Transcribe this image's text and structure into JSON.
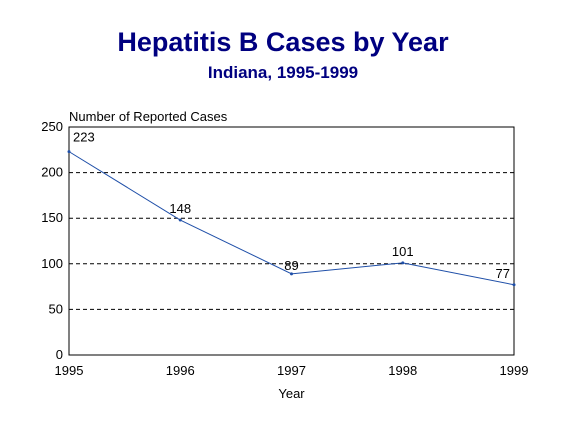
{
  "chart_data": {
    "type": "line",
    "title": "Hepatitis B Cases by Year",
    "subtitle": "Indiana, 1995-1999",
    "ylabel": "Number of Reported Cases",
    "xlabel": "Year",
    "categories": [
      "1995",
      "1996",
      "1997",
      "1998",
      "1999"
    ],
    "series": [
      {
        "values": [
          223,
          148,
          89,
          101,
          77
        ],
        "color": "#1f4fa8"
      }
    ],
    "data_labels": [
      "223",
      "148",
      "89",
      "101",
      "77"
    ],
    "ylim": [
      0,
      250
    ],
    "yticks": [
      0,
      50,
      100,
      150,
      200,
      250
    ],
    "ytick_labels": [
      "0",
      "50",
      "100",
      "150",
      "200",
      "250"
    ],
    "grid": "horizontal dashed",
    "legend": "none"
  }
}
